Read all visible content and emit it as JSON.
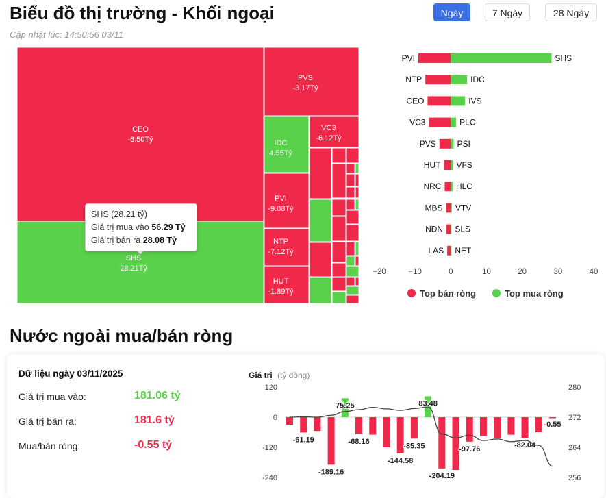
{
  "header": {
    "title": "Biểu đồ thị trường - Khối ngoại",
    "updated": "Cập nhật lúc: 14:50:56 03/11"
  },
  "range_buttons": [
    {
      "label": "Ngày",
      "active": true
    },
    {
      "label": "7 Ngày",
      "active": false
    },
    {
      "label": "28 Ngày",
      "active": false
    }
  ],
  "colors": {
    "sell": "#f0294b",
    "buy": "#5ad14a",
    "accent": "#3b6fe6"
  },
  "tooltip": {
    "title": "SHS (28.21 tỷ)",
    "buy_label": "Giá trị mua vào",
    "buy_value": "56.29 Tỷ",
    "sell_label": "Giá trị bán ra",
    "sell_value": "28.08 Tỷ"
  },
  "treemap_labels": [
    {
      "ticker": "CEO",
      "value": "-6.50Tỷ"
    },
    {
      "ticker": "SHS",
      "value": "28.21Tỷ"
    },
    {
      "ticker": "PVS",
      "value": "-3.17Tỷ"
    },
    {
      "ticker": "IDC",
      "value": "4.55Tỷ"
    },
    {
      "ticker": "VC3",
      "value": "-6.12Tỷ"
    },
    {
      "ticker": "PVI",
      "value": "-9.08Tỷ"
    },
    {
      "ticker": "NTP",
      "value": "-7.12Tỷ"
    },
    {
      "ticker": "HUT",
      "value": "-1.89Tỷ"
    }
  ],
  "top_chart": {
    "type": "bar",
    "orientation": "horizontal-diverging",
    "xlim": [
      -20,
      40
    ],
    "xticks": [
      "−20",
      "−10",
      "0",
      "10",
      "20",
      "30",
      "40"
    ],
    "legend": {
      "sell": "Top bán ròng",
      "buy": "Top mua ròng"
    },
    "rows": [
      {
        "sell_ticker": "PVI",
        "sell": -9.08,
        "buy_ticker": "SHS",
        "buy": 28.21
      },
      {
        "sell_ticker": "NTP",
        "sell": -7.12,
        "buy_ticker": "IDC",
        "buy": 4.55
      },
      {
        "sell_ticker": "CEO",
        "sell": -6.5,
        "buy_ticker": "IVS",
        "buy": 4.0
      },
      {
        "sell_ticker": "VC3",
        "sell": -6.12,
        "buy_ticker": "PLC",
        "buy": 1.5
      },
      {
        "sell_ticker": "PVS",
        "sell": -3.17,
        "buy_ticker": "PSI",
        "buy": 0.8
      },
      {
        "sell_ticker": "HUT",
        "sell": -1.89,
        "buy_ticker": "VFS",
        "buy": 0.6
      },
      {
        "sell_ticker": "NRC",
        "sell": -1.7,
        "buy_ticker": "HLC",
        "buy": 0.5
      },
      {
        "sell_ticker": "MBS",
        "sell": -1.3,
        "buy_ticker": "VTV",
        "buy": 0.3
      },
      {
        "sell_ticker": "NDN",
        "sell": -1.2,
        "buy_ticker": "SLS",
        "buy": 0.2
      },
      {
        "sell_ticker": "LAS",
        "sell": -1.0,
        "buy_ticker": "NET",
        "buy": 0.2
      }
    ]
  },
  "section2": {
    "title": "Nước ngoài mua/bán ròng",
    "date_label": "Dữ liệu ngày 03/11/2025",
    "rows": [
      {
        "label": "Giá trị mua vào:",
        "value": "181.06 tỷ",
        "tone": "buy"
      },
      {
        "label": "Giá trị bán ra:",
        "value": "181.6 tỷ",
        "tone": "sell"
      },
      {
        "label": "Mua/bán ròng:",
        "value": "-0.55 tỷ",
        "tone": "sell"
      }
    ]
  },
  "chart_data": {
    "type": "bar",
    "title": "Giá trị",
    "ylabel_unit": "(tỷ đồng)",
    "yticks_left": [
      "120",
      "0",
      "-120",
      "-240"
    ],
    "yticks_right": [
      "280",
      "272",
      "264",
      "256"
    ],
    "ylim_left": [
      -240,
      120
    ],
    "ylim_right": [
      256,
      280
    ],
    "bars": [
      -30,
      -61.19,
      -55,
      -189.16,
      75.25,
      -68.16,
      -70,
      -120,
      -144.58,
      -85.35,
      83.48,
      -204.19,
      -210,
      -97.76,
      -75,
      -85,
      -70,
      -82.04,
      -60,
      -0.55
    ],
    "bar_labels": [
      "",
      "-61.19",
      "",
      "-189.16",
      "75.25",
      "-68.16",
      "",
      "",
      "-144.58",
      "-85.35",
      "83.48",
      "-204.19",
      "",
      "-97.76",
      "",
      "",
      "",
      "-82.04",
      "",
      "-0.55"
    ],
    "line": [
      272.0,
      272.1,
      272.0,
      272.5,
      273.5,
      274.0,
      274.6,
      274.2,
      273.8,
      274.3,
      274.7,
      267.5,
      266.5,
      267.2,
      265.8,
      266.2,
      265.5,
      265.8,
      264.5,
      259.0
    ]
  }
}
